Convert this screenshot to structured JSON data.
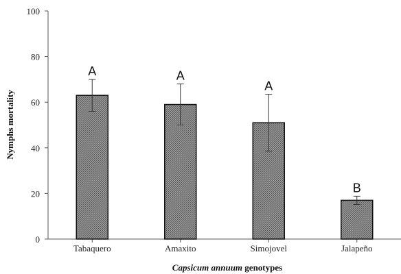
{
  "chart_data": {
    "type": "bar",
    "categories": [
      "Tabaquero",
      "Amaxito",
      "Simojovel",
      "Jalapeño"
    ],
    "values": [
      63,
      59,
      51,
      17
    ],
    "errors": [
      7,
      9,
      12.5,
      1.8
    ],
    "significance": [
      "A",
      "A",
      "A",
      "B"
    ],
    "ylim": [
      0,
      100
    ],
    "yticks": [
      0,
      20,
      40,
      60,
      80,
      100
    ],
    "xlabel_italic": "Capsicum annuum",
    "xlabel_bold": " genotypes",
    "ylabel": "Nymphs mortality",
    "grid": false,
    "bar_color": "#8a8a8a"
  }
}
